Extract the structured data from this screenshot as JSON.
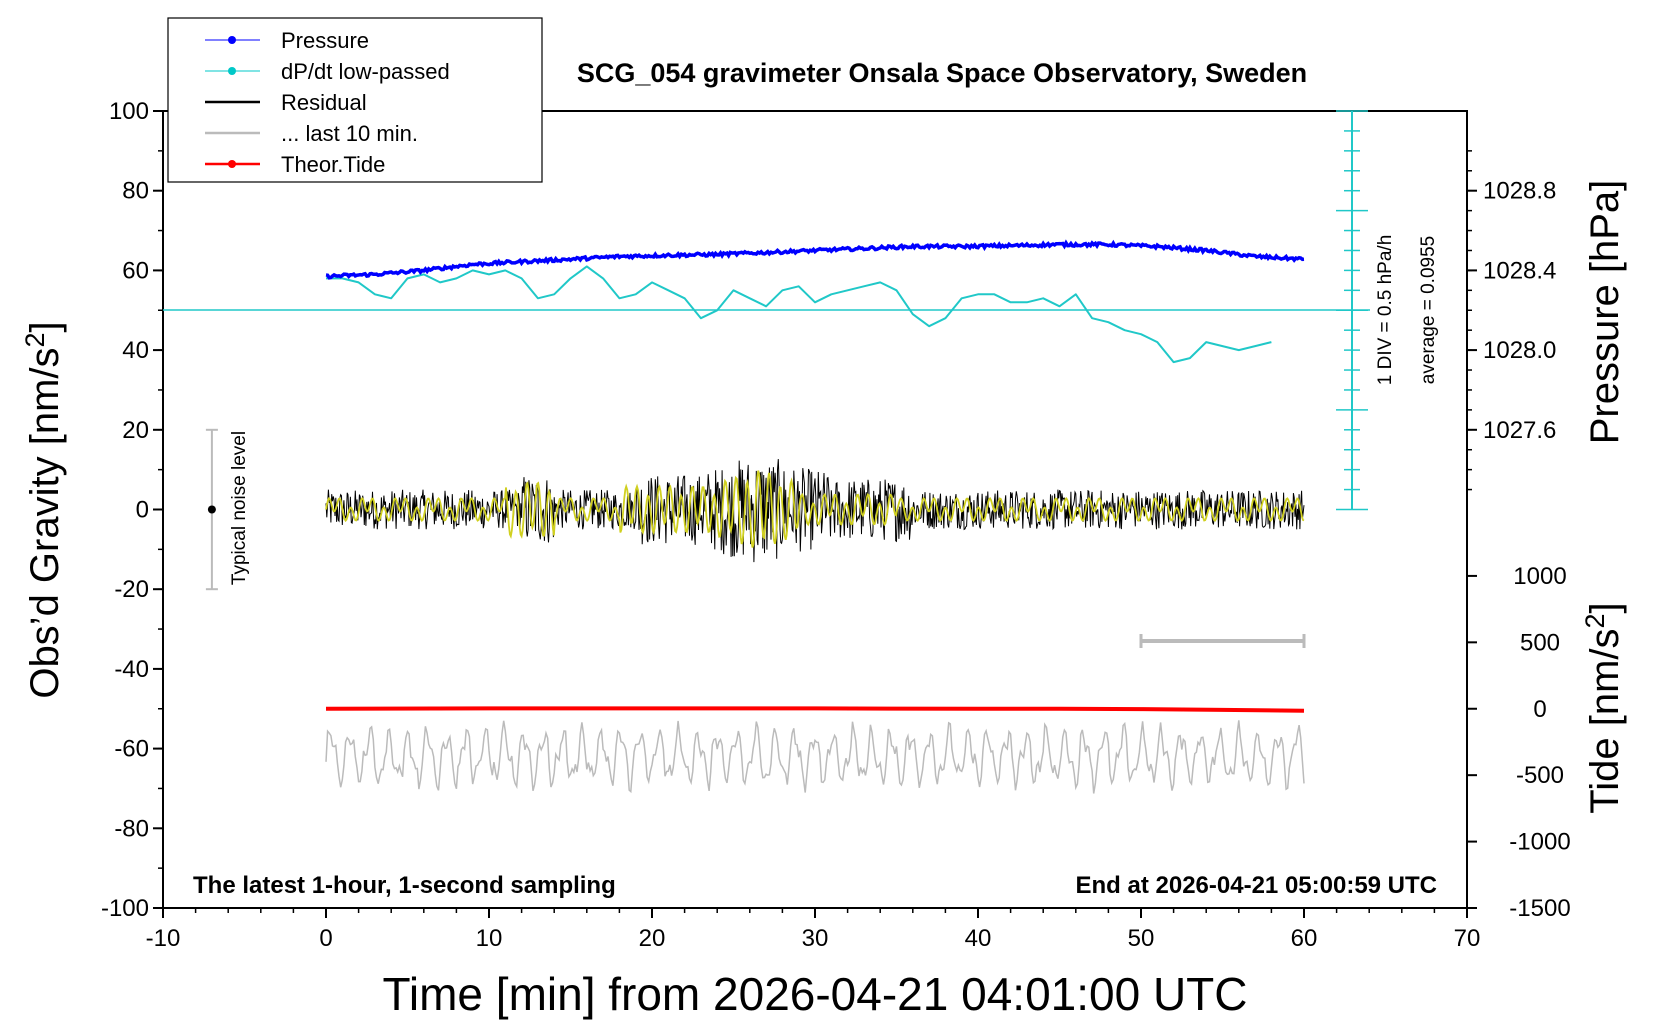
{
  "chart_data": {
    "type": "line",
    "title": "SCG_054 gravimeter Onsala Space Observatory, Sweden",
    "xlabel": "Time [min] from 2026-04-21 04:01:00 UTC",
    "ylabel_left": "Obs’d Gravity [nm/s",
    "ylabel_left_sup": "2",
    "ylabel_left_end": "]",
    "ylabel_right_pressure": "Pressure [hPa]",
    "ylabel_right_tide": "Tide [nm/s",
    "ylabel_right_tide_sup": "2",
    "ylabel_right_tide_end": "]",
    "xlim": [
      -10,
      70
    ],
    "ylim_left": [
      -100,
      100
    ],
    "x_ticks": [
      -10,
      0,
      10,
      20,
      30,
      40,
      50,
      60,
      70
    ],
    "y_ticks_left": [
      -100,
      -80,
      -60,
      -40,
      -20,
      0,
      20,
      40,
      60,
      80,
      100
    ],
    "pressure_ticks": [
      "1028.8",
      "1028.4",
      "1028.0",
      "1027.6"
    ],
    "pressure_tick_values": [
      1028.8,
      1028.4,
      1028.0,
      1027.6
    ],
    "pressure_range": [
      1027.3,
      1029.0
    ],
    "tide_ticks": [
      "1000",
      "500",
      "0",
      "-500",
      "-1000",
      "-1500"
    ],
    "tide_tick_values": [
      1000,
      500,
      0,
      -500,
      -1000,
      -1500
    ],
    "tide_range": [
      -1500,
      1000
    ],
    "footer_left": "The latest 1-hour, 1-second sampling",
    "footer_right": "End at 2026-04-21 05:00:59 UTC",
    "noise_label": "Typical noise level",
    "noise_bar": {
      "x": -7,
      "center": 0,
      "low": -20,
      "high": 20
    },
    "div_label_1": "1 DIV = 0.5 hPa/h",
    "div_label_2": "average = 0.0955",
    "legend": [
      {
        "label": "Pressure",
        "color": "#0000ff",
        "marker": true
      },
      {
        "label": "dP/dt low-passed",
        "color": "#00c8c8",
        "marker": true
      },
      {
        "label": "Residual",
        "color": "#000000",
        "marker": false
      },
      {
        "label": "... last 10 min.",
        "color": "#bbbbbb",
        "marker": false
      },
      {
        "label": "Theor.Tide",
        "color": "#ff0000",
        "marker": true
      }
    ],
    "colors": {
      "pressure": "#0000ff",
      "dpdt": "#20c8c8",
      "residual": "#000000",
      "residual_lowpass": "#d0d020",
      "last10": "#bbbbbb",
      "tide": "#ff0000",
      "scale_bar": "#20c8c8"
    },
    "last10_bar": {
      "x_start": 50,
      "x_end": 60,
      "y": -33
    },
    "series": [
      {
        "name": "Pressure",
        "x": [
          0,
          3,
          6,
          9,
          12,
          15,
          18,
          21,
          24,
          27,
          30,
          33,
          36,
          39,
          42,
          45,
          48,
          51,
          54,
          57,
          60
        ],
        "y": [
          58.5,
          59.0,
          60.0,
          61.5,
          62.2,
          62.8,
          63.5,
          63.8,
          64.0,
          64.5,
          65.0,
          65.5,
          66.0,
          66.0,
          66.2,
          66.5,
          66.5,
          66.0,
          65.0,
          63.5,
          62.8
        ]
      },
      {
        "name": "dP/dt low-passed",
        "x": [
          0,
          1,
          2,
          3,
          4,
          5,
          6,
          7,
          8,
          9,
          10,
          11,
          12,
          13,
          14,
          15,
          16,
          17,
          18,
          19,
          20,
          21,
          22,
          23,
          24,
          25,
          26,
          27,
          28,
          29,
          30,
          31,
          32,
          33,
          34,
          35,
          36,
          37,
          38,
          39,
          40,
          41,
          42,
          43,
          44,
          45,
          46,
          47,
          48,
          49,
          50,
          51,
          52,
          53,
          54,
          55,
          56,
          57,
          58
        ],
        "y": [
          58,
          58,
          57,
          54,
          53,
          58,
          59,
          57,
          58,
          60,
          59,
          60,
          58,
          53,
          54,
          58,
          61,
          58,
          53,
          54,
          57,
          55,
          53,
          48,
          50,
          55,
          53,
          51,
          55,
          56,
          52,
          54,
          55,
          56,
          57,
          55,
          49,
          46,
          48,
          53,
          54,
          54,
          52,
          52,
          53,
          51,
          54,
          48,
          47,
          45,
          44,
          42,
          37,
          38,
          42,
          41,
          40,
          41,
          42
        ]
      },
      {
        "name": "Theor.Tide",
        "x": [
          0,
          10,
          20,
          30,
          40,
          45,
          50,
          55,
          60
        ],
        "y": [
          -50.0,
          -49.9,
          -49.9,
          -49.9,
          -50.0,
          -50.0,
          -50.1,
          -50.3,
          -50.5
        ]
      }
    ]
  }
}
